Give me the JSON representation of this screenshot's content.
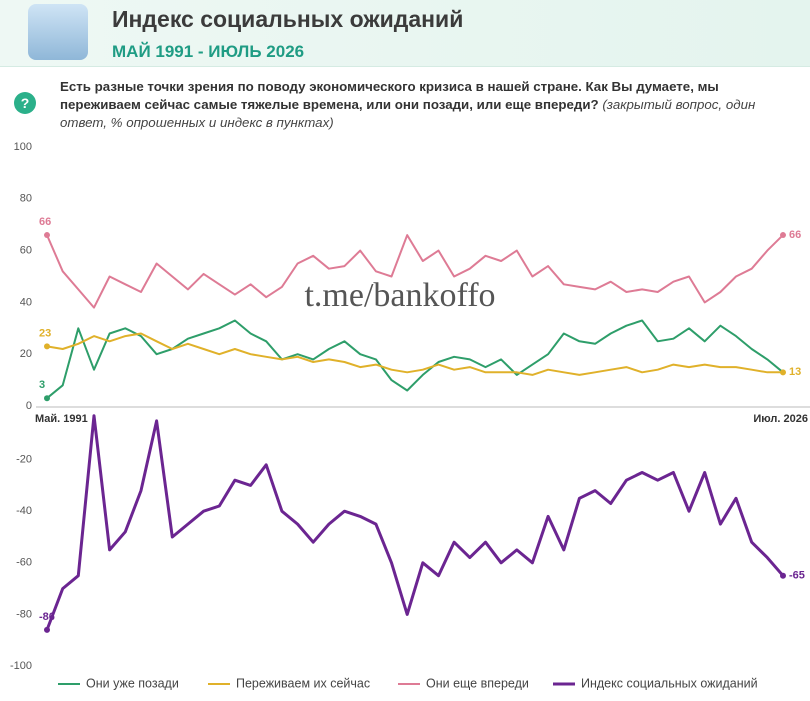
{
  "header": {
    "title": "Индекс социальных ожиданий",
    "subtitle": "МАЙ 1991 - ИЮЛЬ 2026"
  },
  "question": {
    "icon": "?",
    "text": "Есть разные точки зрения по поводу экономического кризиса в нашей стране. Как Вы думаете, мы переживаем сейчас самые тяжелые времена, или они позади, или еще впереди?",
    "note": "(закрытый вопрос, один ответ, % опрошенных и индекс в пунктах)"
  },
  "watermark": "t.me/bankoffo",
  "chart_data": [
    {
      "type": "line",
      "categories": [
        "Май. 1991",
        null,
        null,
        null,
        null,
        null,
        null,
        null,
        null,
        null,
        null,
        null,
        null,
        null,
        null,
        null,
        null,
        null,
        null,
        null,
        null,
        null,
        null,
        null,
        null,
        null,
        null,
        null,
        null,
        null,
        null,
        null,
        null,
        null,
        null,
        null,
        null,
        null,
        null,
        null,
        null,
        null,
        null,
        null,
        null,
        null,
        null,
        "Июл. 2026"
      ],
      "ylim": [
        0,
        100
      ],
      "yticks": [
        0,
        20,
        40,
        60,
        80,
        100
      ],
      "grid": false,
      "series": [
        {
          "name": "Они уже позади",
          "color": "#2e9e6a",
          "values": [
            3,
            8,
            30,
            14,
            28,
            30,
            27,
            20,
            22,
            26,
            28,
            30,
            33,
            28,
            25,
            18,
            20,
            18,
            22,
            25,
            20,
            18,
            10,
            6,
            12,
            17,
            19,
            18,
            15,
            18,
            12,
            16,
            20,
            28,
            25,
            24,
            28,
            31,
            33,
            25,
            26,
            30,
            25,
            31,
            27,
            22,
            18,
            13
          ]
        },
        {
          "name": "Переживаем их сейчас",
          "color": "#e0b12a",
          "values": [
            23,
            22,
            24,
            27,
            25,
            27,
            28,
            25,
            22,
            24,
            22,
            20,
            22,
            20,
            19,
            18,
            19,
            17,
            18,
            17,
            15,
            16,
            14,
            13,
            14,
            16,
            14,
            15,
            13,
            13,
            13,
            12,
            14,
            13,
            12,
            13,
            14,
            15,
            13,
            14,
            16,
            15,
            16,
            15,
            15,
            14,
            13,
            13
          ]
        },
        {
          "name": "Они еще впереди",
          "color": "#de7b95",
          "values": [
            66,
            52,
            45,
            38,
            50,
            47,
            44,
            55,
            50,
            45,
            51,
            47,
            43,
            47,
            42,
            46,
            55,
            58,
            53,
            54,
            60,
            52,
            50,
            66,
            56,
            60,
            50,
            53,
            58,
            56,
            60,
            50,
            54,
            47,
            46,
            45,
            48,
            44,
            45,
            44,
            48,
            50,
            40,
            44,
            50,
            53,
            60,
            66
          ]
        }
      ]
    },
    {
      "type": "line",
      "categories": [
        null,
        null,
        null,
        null,
        null,
        null,
        null,
        null,
        null,
        null,
        null,
        null,
        null,
        null,
        null,
        null,
        null,
        null,
        null,
        null,
        null,
        null,
        null,
        null,
        null,
        null,
        null,
        null,
        null,
        null,
        null,
        null,
        null,
        null,
        null,
        null,
        null,
        null,
        null,
        null,
        null,
        null,
        null,
        null,
        null,
        null,
        null,
        null
      ],
      "ylim": [
        -100,
        0
      ],
      "yticks": [
        -100,
        -80,
        -60,
        -40,
        -20
      ],
      "grid": false,
      "series": [
        {
          "name": "Индекс социальных ожиданий",
          "color": "#6b2591",
          "values": [
            -86,
            -70,
            -65,
            -3,
            -55,
            -48,
            -32,
            -5,
            -50,
            -45,
            -40,
            -38,
            -28,
            -30,
            -22,
            -40,
            -45,
            -52,
            -45,
            -40,
            -42,
            -45,
            -60,
            -80,
            -60,
            -65,
            -52,
            -58,
            -52,
            -60,
            -55,
            -60,
            -42,
            -55,
            -35,
            -32,
            -37,
            -28,
            -25,
            -28,
            -25,
            -40,
            -25,
            -45,
            -35,
            -52,
            -58,
            -65
          ]
        }
      ]
    }
  ]
}
